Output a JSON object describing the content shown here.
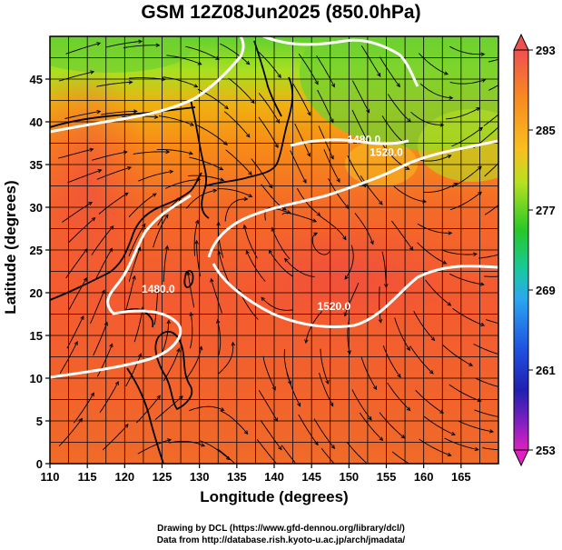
{
  "title": "GSM 12Z08Jun2025 (850.0hPa)",
  "x_axis": {
    "label": "Longitude (degrees)",
    "min": 110,
    "max": 170,
    "ticks": [
      110,
      115,
      120,
      125,
      130,
      135,
      140,
      145,
      150,
      155,
      160,
      165
    ]
  },
  "y_axis": {
    "label": "Latitude  (degrees)",
    "min": 0,
    "max": 50,
    "ticks": [
      0,
      5,
      10,
      15,
      20,
      25,
      30,
      35,
      40,
      45
    ]
  },
  "colorbar": {
    "min": 253,
    "max": 293,
    "ticks": [
      293,
      285,
      277,
      269,
      261,
      253
    ]
  },
  "contour_labels": [
    {
      "text": "1480.0",
      "lon": 124.5,
      "lat": 20.0
    },
    {
      "text": "1520.0",
      "lon": 148.0,
      "lat": 18.0
    },
    {
      "text": "1480.0",
      "lon": 152.0,
      "lat": 37.5
    },
    {
      "text": "1520.0",
      "lon": 155.0,
      "lat": 36.0
    }
  ],
  "credits": {
    "line1": "Drawing by DCL (https://www.gfd-dennou.org/library/dcl/)",
    "line2": "Data from http://database.rish.kyoto-u.ac.jp/arch/jmadata/"
  }
}
